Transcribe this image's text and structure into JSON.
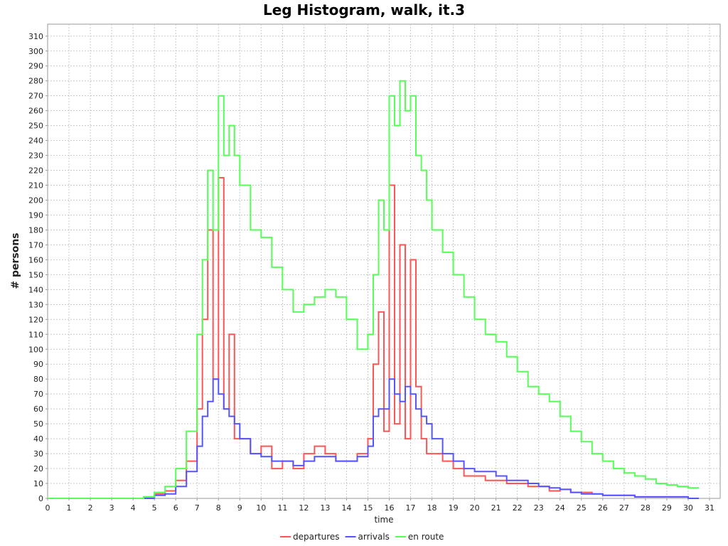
{
  "chart_data": {
    "type": "line",
    "title": "Leg Histogram, walk, it.3",
    "xlabel": "time",
    "ylabel": "# persons",
    "xlim": [
      0,
      31.5
    ],
    "ylim": [
      0,
      318
    ],
    "xticks": [
      0,
      1,
      2,
      3,
      4,
      5,
      6,
      7,
      8,
      9,
      10,
      11,
      12,
      13,
      14,
      15,
      16,
      17,
      18,
      19,
      20,
      21,
      22,
      23,
      24,
      25,
      26,
      27,
      28,
      29,
      30,
      31
    ],
    "yticks": [
      0,
      10,
      20,
      30,
      40,
      50,
      60,
      70,
      80,
      90,
      100,
      110,
      120,
      130,
      140,
      150,
      160,
      170,
      180,
      190,
      200,
      210,
      220,
      230,
      240,
      250,
      260,
      270,
      280,
      290,
      300,
      310
    ],
    "grid": true,
    "legend": "bottom",
    "step": "post",
    "x": [
      0,
      0.5,
      1,
      1.5,
      2,
      2.5,
      3,
      3.5,
      4,
      4.5,
      5,
      5.5,
      6,
      6.5,
      7,
      7.25,
      7.5,
      7.75,
      8,
      8.25,
      8.5,
      8.75,
      9,
      9.5,
      10,
      10.5,
      11,
      11.5,
      12,
      12.5,
      13,
      13.5,
      14,
      14.5,
      15,
      15.25,
      15.5,
      15.75,
      16,
      16.25,
      16.5,
      16.75,
      17,
      17.25,
      17.5,
      17.75,
      18,
      18.5,
      19,
      19.5,
      20,
      20.5,
      21,
      21.5,
      22,
      22.5,
      23,
      23.5,
      24,
      24.5,
      25,
      25.5,
      26,
      26.5,
      27,
      27.5,
      28,
      28.5,
      29,
      29.5,
      30
    ],
    "series": [
      {
        "name": "departures",
        "color": "#ff5555",
        "values": [
          0,
          0,
          0,
          0,
          0,
          0,
          0,
          0,
          0,
          1,
          3,
          5,
          12,
          25,
          60,
          120,
          180,
          80,
          215,
          60,
          110,
          40,
          40,
          30,
          35,
          20,
          25,
          20,
          30,
          35,
          30,
          25,
          25,
          30,
          40,
          90,
          125,
          45,
          210,
          50,
          170,
          40,
          160,
          75,
          40,
          30,
          30,
          25,
          20,
          15,
          15,
          12,
          12,
          10,
          10,
          8,
          8,
          5,
          6,
          4,
          4,
          3,
          2,
          2,
          2,
          1,
          1,
          1,
          1,
          1,
          0
        ]
      },
      {
        "name": "arrivals",
        "color": "#5555ff",
        "values": [
          0,
          0,
          0,
          0,
          0,
          0,
          0,
          0,
          0,
          0,
          2,
          3,
          8,
          18,
          35,
          55,
          65,
          80,
          70,
          60,
          55,
          50,
          40,
          30,
          28,
          25,
          25,
          22,
          25,
          28,
          28,
          25,
          25,
          28,
          35,
          55,
          60,
          60,
          80,
          70,
          65,
          75,
          70,
          60,
          55,
          50,
          40,
          30,
          25,
          20,
          18,
          18,
          15,
          12,
          12,
          10,
          8,
          7,
          6,
          4,
          3,
          3,
          2,
          2,
          2,
          1,
          1,
          1,
          1,
          1,
          0
        ]
      },
      {
        "name": "en route",
        "color": "#55ff55",
        "values": [
          0,
          0,
          0,
          0,
          0,
          0,
          0,
          0,
          0,
          1,
          4,
          8,
          20,
          45,
          110,
          160,
          220,
          180,
          270,
          230,
          250,
          230,
          210,
          180,
          175,
          155,
          140,
          125,
          130,
          135,
          140,
          135,
          120,
          100,
          110,
          150,
          200,
          180,
          270,
          250,
          280,
          260,
          270,
          230,
          220,
          200,
          180,
          165,
          150,
          135,
          120,
          110,
          105,
          95,
          85,
          75,
          70,
          65,
          55,
          45,
          38,
          30,
          25,
          20,
          17,
          15,
          13,
          10,
          9,
          8,
          7
        ]
      }
    ]
  }
}
